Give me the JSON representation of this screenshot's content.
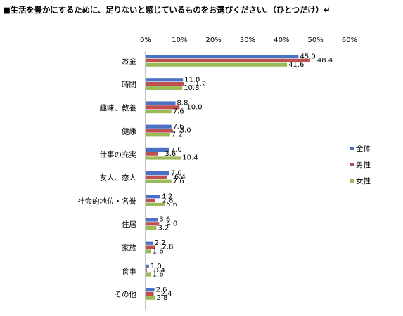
{
  "title": "■生活を豊かにするために、足りないと感じているものをお選びください。（ひとつだけ）↵",
  "chart_data": {
    "type": "bar",
    "orientation": "horizontal",
    "xlim": [
      0,
      60
    ],
    "ticks": [
      "0%",
      "10%",
      "20%",
      "30%",
      "40%",
      "50%",
      "60%"
    ],
    "tick_values": [
      0,
      10,
      20,
      30,
      40,
      50,
      60
    ],
    "grid": false,
    "legend_position": "right",
    "categories": [
      "お金",
      "時間",
      "趣味、教養",
      "健康",
      "仕事の充実",
      "友人、恋人",
      "社会的地位・名誉",
      "住居",
      "家族",
      "食事",
      "その他"
    ],
    "series": [
      {
        "name": "全体",
        "color": "#4a72c4",
        "values": [
          45.0,
          11.0,
          8.8,
          7.6,
          7.0,
          7.0,
          4.2,
          3.6,
          2.2,
          1.0,
          2.6
        ]
      },
      {
        "name": "男性",
        "color": "#c0504d",
        "values": [
          48.4,
          11.2,
          10.0,
          8.0,
          3.6,
          6.4,
          2.8,
          4.0,
          2.8,
          0.4,
          2.4
        ]
      },
      {
        "name": "女性",
        "color": "#9bbb59",
        "values": [
          41.6,
          10.8,
          7.6,
          7.2,
          10.4,
          7.6,
          5.6,
          3.2,
          1.6,
          1.6,
          2.8
        ]
      }
    ]
  }
}
